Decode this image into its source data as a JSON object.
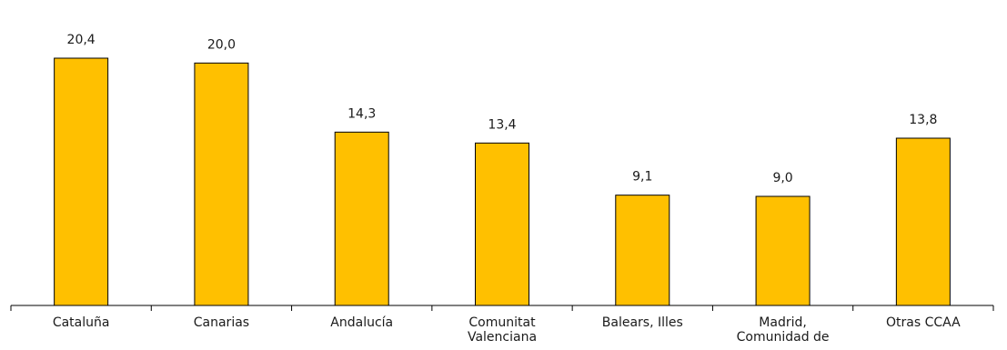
{
  "chart_data": {
    "type": "bar",
    "title": "",
    "xlabel": "",
    "ylabel": "",
    "categories": [
      [
        "Cataluña"
      ],
      [
        "Canarias"
      ],
      [
        "Andalucía"
      ],
      [
        "Comunitat",
        "Valenciana"
      ],
      [
        "Balears, Illes"
      ],
      [
        "Madrid,",
        "Comunidad de"
      ],
      [
        "Otras CCAA"
      ]
    ],
    "values": [
      20.4,
      20.0,
      14.3,
      13.4,
      9.1,
      9.0,
      13.8
    ],
    "value_labels": [
      "20,4",
      "20,0",
      "14,3",
      "13,4",
      "9,1",
      "9,0",
      "13,8"
    ],
    "ylim": [
      0,
      23.4
    ],
    "grid": false,
    "legend": "none",
    "bar_color": "#FFC000",
    "bar_edge_color": "#000000",
    "axis_color": "#000000"
  }
}
